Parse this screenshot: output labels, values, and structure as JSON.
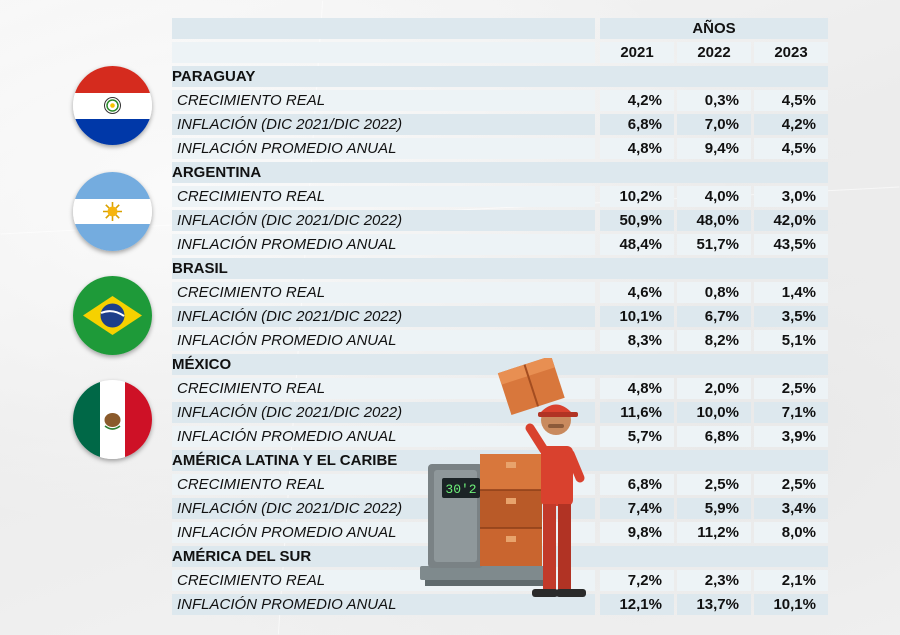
{
  "header": {
    "group_label": "AÑOS",
    "years": [
      "2021",
      "2022",
      "2023"
    ]
  },
  "sections": [
    {
      "country": "PARAGUAY",
      "rows": [
        {
          "label": "CRECIMIENTO REAL",
          "values": [
            "4,2%",
            "0,3%",
            "4,5%"
          ]
        },
        {
          "label": "INFLACIÓN (DIC 2021/DIC 2022)",
          "values": [
            "6,8%",
            "7,0%",
            "4,2%"
          ]
        },
        {
          "label": "INFLACIÓN PROMEDIO ANUAL",
          "values": [
            "4,8%",
            "9,4%",
            "4,5%"
          ]
        }
      ]
    },
    {
      "country": "ARGENTINA",
      "rows": [
        {
          "label": "CRECIMIENTO REAL",
          "values": [
            "10,2%",
            "4,0%",
            "3,0%"
          ]
        },
        {
          "label": "INFLACIÓN (DIC 2021/DIC 2022)",
          "values": [
            "50,9%",
            "48,0%",
            "42,0%"
          ]
        },
        {
          "label": "INFLACIÓN PROMEDIO ANUAL",
          "values": [
            "48,4%",
            "51,7%",
            "43,5%"
          ]
        }
      ]
    },
    {
      "country": "BRASIL",
      "rows": [
        {
          "label": "CRECIMIENTO REAL",
          "values": [
            "4,6%",
            "0,8%",
            "1,4%"
          ]
        },
        {
          "label": "INFLACIÓN (DIC 2021/DIC 2022)",
          "values": [
            "10,1%",
            "6,7%",
            "3,5%"
          ]
        },
        {
          "label": "INFLACIÓN PROMEDIO ANUAL",
          "values": [
            "8,3%",
            "8,2%",
            "5,1%"
          ]
        }
      ]
    },
    {
      "country": "MÉXICO",
      "rows": [
        {
          "label": "CRECIMIENTO REAL",
          "values": [
            "4,8%",
            "2,0%",
            "2,5%"
          ]
        },
        {
          "label": "INFLACIÓN (DIC 2021/DIC 2022)",
          "values": [
            "11,6%",
            "10,0%",
            "7,1%"
          ]
        },
        {
          "label": "INFLACIÓN PROMEDIO ANUAL",
          "values": [
            "5,7%",
            "6,8%",
            "3,9%"
          ]
        }
      ]
    },
    {
      "country": "AMÉRICA LATINA Y EL CARIBE",
      "rows": [
        {
          "label": "CRECIMIENTO REAL",
          "values": [
            "6,8%",
            "2,5%",
            "2,5%"
          ]
        },
        {
          "label": "INFLACIÓN (DIC 2021/DIC 2022)",
          "values": [
            "7,4%",
            "5,9%",
            "3,4%"
          ]
        },
        {
          "label": "INFLACIÓN PROMEDIO ANUAL",
          "values": [
            "9,8%",
            "11,2%",
            "8,0%"
          ]
        }
      ]
    },
    {
      "country": "AMÉRICA DEL SUR",
      "rows": [
        {
          "label": "CRECIMIENTO REAL",
          "values": [
            "7,2%",
            "2,3%",
            "2,1%"
          ]
        },
        {
          "label": "INFLACIÓN PROMEDIO ANUAL",
          "values": [
            "12,1%",
            "13,7%",
            "10,1%"
          ]
        }
      ]
    }
  ],
  "flags": [
    "paraguay-flag-icon",
    "argentina-flag-icon",
    "brazil-flag-icon",
    "mexico-flag-icon"
  ],
  "illustration": {
    "scale_display": "30'2",
    "icon": "delivery-worker-with-boxes-and-scale-illustration"
  },
  "colors": {
    "row_shade": "#dde8ee",
    "row_light": "#edf3f6",
    "paper": "#f1f1f1"
  }
}
